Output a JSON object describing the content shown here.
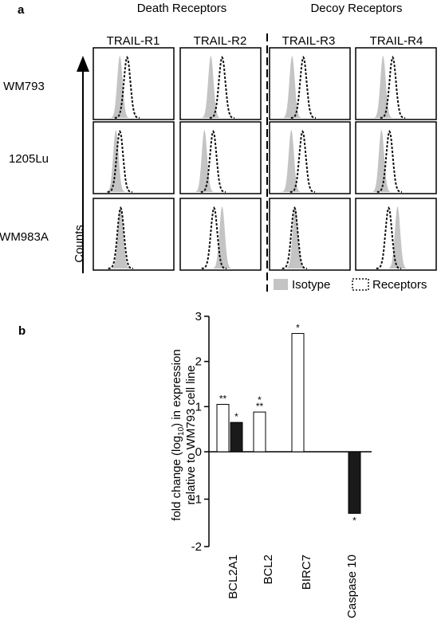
{
  "panel_a": {
    "label": "a",
    "group_headers": [
      "Death Receptors",
      "Decoy Receptors"
    ],
    "columns": [
      "TRAIL-R1",
      "TRAIL-R2",
      "TRAIL-R3",
      "TRAIL-R4"
    ],
    "rows": [
      "WM793",
      "1205Lu",
      "WM983A"
    ],
    "y_axis_label": "Counts",
    "legend": [
      {
        "label": "Isotype",
        "style": "filled-gray"
      },
      {
        "label": "Receptors",
        "style": "dotted-outline"
      }
    ],
    "colors": {
      "isotype": "#c4c4c4",
      "receptor": "#111111"
    }
  },
  "panel_b": {
    "label": "b",
    "colors": {
      "outlined": "#ffffff",
      "filled": "#1a1a1a"
    }
  },
  "chart_data": [
    {
      "type": "histogram-grid",
      "rows": [
        "WM793",
        "1205Lu",
        "WM983A"
      ],
      "columns": [
        "TRAIL-R1",
        "TRAIL-R2",
        "TRAIL-R3",
        "TRAIL-R4"
      ],
      "ylabel": "Counts",
      "legend": [
        "Isotype",
        "Receptors"
      ],
      "peak_positions": [
        [
          {
            "iso": 0.33,
            "rec": 0.42
          },
          {
            "iso": 0.38,
            "rec": 0.52
          },
          {
            "iso": 0.28,
            "rec": 0.42
          },
          {
            "iso": 0.34,
            "rec": 0.46
          }
        ],
        [
          {
            "iso": 0.28,
            "rec": 0.33
          },
          {
            "iso": 0.3,
            "rec": 0.41
          },
          {
            "iso": 0.27,
            "rec": 0.41
          },
          {
            "iso": 0.32,
            "rec": 0.42
          }
        ],
        [
          {
            "iso": 0.34,
            "rec": 0.34
          },
          {
            "iso": 0.52,
            "rec": 0.42
          },
          {
            "iso": 0.32,
            "rec": 0.31
          },
          {
            "iso": 0.52,
            "rec": 0.41
          }
        ]
      ]
    },
    {
      "type": "bar",
      "categories": [
        "BCL2A1",
        "BCL2",
        "BIRC7",
        "Caspase 10"
      ],
      "ylabel": "fold change (log10) in expression relative to WM793 cell line",
      "ylabel_lines": [
        "fold change (log",
        "10",
        ") in expression",
        "relative to WM793 cell line"
      ],
      "ylim": [
        -2,
        3
      ],
      "yticks": [
        -2,
        -1,
        0,
        1,
        2,
        3
      ],
      "bars": [
        {
          "category": "BCL2A1",
          "style": "outlined",
          "value": 1.05,
          "label": "**"
        },
        {
          "category": "BCL2A1",
          "style": "filled",
          "value": 0.65,
          "label": "*"
        },
        {
          "category": "BCL2",
          "style": "outlined",
          "value": 0.88,
          "label": "*\n**"
        },
        {
          "category": "BIRC7",
          "style": "outlined",
          "value": 2.62,
          "label": "*"
        },
        {
          "category": "Caspase 10",
          "style": "filled",
          "value": -1.3,
          "label": "*"
        }
      ]
    }
  ]
}
